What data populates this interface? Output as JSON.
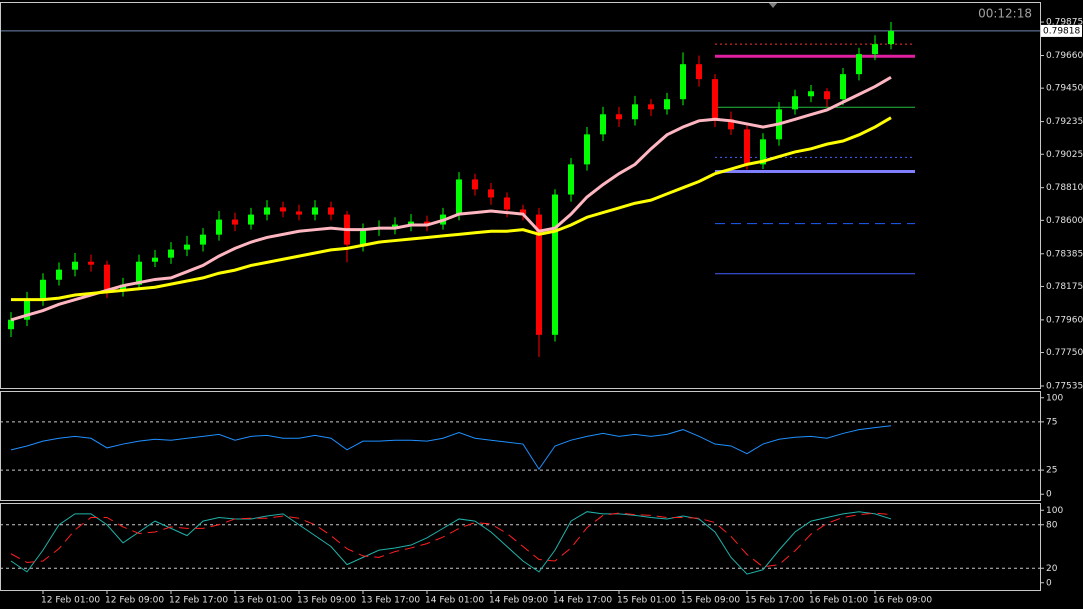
{
  "timer": "00:12:18",
  "chart_data": [
    {
      "type": "candlestick",
      "categories": [
        null,
        null,
        "12 Feb 01:00",
        null,
        null,
        null,
        "12 Feb 09:00",
        null,
        null,
        null,
        "12 Feb 17:00",
        null,
        null,
        null,
        "13 Feb 01:00",
        null,
        null,
        null,
        "13 Feb 09:00",
        null,
        null,
        null,
        "13 Feb 17:00",
        null,
        null,
        null,
        "14 Feb 01:00",
        null,
        null,
        null,
        "14 Feb 09:00",
        null,
        null,
        null,
        "14 Feb 17:00",
        null,
        null,
        null,
        "15 Feb 01:00",
        null,
        null,
        null,
        "15 Feb 09:00",
        null,
        null,
        null,
        "15 Feb 17:00",
        null,
        null,
        null,
        "16 Feb 01:00",
        null,
        null,
        null,
        "16 Feb 09:00",
        null
      ],
      "open": [
        0.779,
        0.77961,
        0.7809,
        0.78218,
        0.78283,
        0.78334,
        0.78315,
        0.78154,
        0.78186,
        0.78334,
        0.7836,
        0.78412,
        0.78444,
        0.78508,
        0.78605,
        0.78573,
        0.78637,
        0.78683,
        0.78657,
        0.78637,
        0.78683,
        0.78637,
        0.78444,
        0.78541,
        0.78554,
        0.78573,
        0.78592,
        0.78573,
        0.78637,
        0.78863,
        0.78799,
        0.78747,
        0.7867,
        0.78637,
        0.77864,
        0.78766,
        0.7896,
        0.79153,
        0.79282,
        0.7925,
        0.79346,
        0.79314,
        0.79379,
        0.79604,
        0.79508,
        0.7925,
        0.79185,
        0.7896,
        0.79121,
        0.79314,
        0.79398,
        0.7943,
        0.79379,
        0.7954,
        0.79669,
        0.79733
      ],
      "high": [
        0.7801,
        0.7814,
        0.7826,
        0.7833,
        0.7839,
        0.7838,
        0.7834,
        0.7823,
        0.7838,
        0.7841,
        0.7846,
        0.785,
        0.7855,
        0.7866,
        0.7865,
        0.7868,
        0.7873,
        0.7872,
        0.787,
        0.7873,
        0.7872,
        0.7866,
        0.7858,
        0.786,
        0.7862,
        0.7864,
        0.7863,
        0.7868,
        0.7891,
        0.789,
        0.7884,
        0.7878,
        0.787,
        0.7868,
        0.788,
        0.79,
        0.792,
        0.7933,
        0.7933,
        0.794,
        0.7938,
        0.7942,
        0.7968,
        0.7966,
        0.7954,
        0.793,
        0.7923,
        0.7916,
        0.7936,
        0.7944,
        0.7947,
        0.7945,
        0.7958,
        0.7971,
        0.7979,
        0.79875
      ],
      "low": [
        0.7785,
        0.7792,
        0.7805,
        0.7818,
        0.7824,
        0.7827,
        0.781,
        0.7811,
        0.7815,
        0.783,
        0.7832,
        0.7837,
        0.784,
        0.7847,
        0.7853,
        0.7854,
        0.786,
        0.7862,
        0.786,
        0.786,
        0.786,
        0.7833,
        0.784,
        0.785,
        0.7851,
        0.7853,
        0.7853,
        0.7854,
        0.786,
        0.7876,
        0.787,
        0.7862,
        0.786,
        0.77722,
        0.7782,
        0.7872,
        0.7892,
        0.7911,
        0.792,
        0.7921,
        0.7927,
        0.7928,
        0.7934,
        0.7946,
        0.792,
        0.7915,
        0.78927,
        0.7893,
        0.7908,
        0.7928,
        0.7936,
        0.7933,
        0.7934,
        0.795,
        0.7963,
        0.797
      ],
      "close": [
        0.77961,
        0.7809,
        0.78218,
        0.78283,
        0.78334,
        0.78315,
        0.78154,
        0.78186,
        0.78334,
        0.7836,
        0.78412,
        0.78444,
        0.78508,
        0.78605,
        0.78573,
        0.78637,
        0.78683,
        0.78657,
        0.78637,
        0.78683,
        0.78637,
        0.78444,
        0.78541,
        0.78554,
        0.78573,
        0.78592,
        0.78573,
        0.78637,
        0.78863,
        0.78799,
        0.78747,
        0.7867,
        0.78637,
        0.77864,
        0.78766,
        0.7896,
        0.79153,
        0.79282,
        0.7925,
        0.79346,
        0.79314,
        0.79379,
        0.79604,
        0.79508,
        0.7925,
        0.79185,
        0.7896,
        0.79121,
        0.79314,
        0.79398,
        0.7943,
        0.79379,
        0.7954,
        0.79669,
        0.79733,
        0.79818
      ],
      "up_color": "#00ff00",
      "down_color": "#ff0000",
      "series": [
        {
          "color": "#ffb6c1",
          "values": [
            0.7796,
            0.7799,
            0.7802,
            0.7806,
            0.7809,
            0.7812,
            0.7815,
            0.7818,
            0.782,
            0.7822,
            0.7823,
            0.7827,
            0.7831,
            0.7837,
            0.7842,
            0.7846,
            0.7849,
            0.7851,
            0.7853,
            0.7854,
            0.7855,
            0.7854,
            0.7854,
            0.7855,
            0.7855,
            0.7857,
            0.7857,
            0.786,
            0.7864,
            0.7865,
            0.7866,
            0.7865,
            0.7864,
            0.7853,
            0.7855,
            0.7864,
            0.7875,
            0.7883,
            0.789,
            0.7896,
            0.7906,
            0.7915,
            0.792,
            0.7924,
            0.7925,
            0.7924,
            0.7922,
            0.792,
            0.7922,
            0.7925,
            0.7928,
            0.7931,
            0.7936,
            0.7941,
            0.7946,
            0.7952
          ]
        },
        {
          "color": "#ffff00",
          "values": [
            0.7809,
            0.7809,
            0.7809,
            0.781,
            0.7812,
            0.7813,
            0.7814,
            0.7815,
            0.7816,
            0.7817,
            0.7819,
            0.7821,
            0.7823,
            0.7826,
            0.7828,
            0.7831,
            0.7833,
            0.7835,
            0.7837,
            0.7839,
            0.7841,
            0.7842,
            0.7844,
            0.7846,
            0.7847,
            0.7848,
            0.7849,
            0.785,
            0.7851,
            0.7852,
            0.7853,
            0.7853,
            0.7854,
            0.7851,
            0.7853,
            0.7857,
            0.7862,
            0.7865,
            0.7868,
            0.7871,
            0.7873,
            0.7877,
            0.7881,
            0.7885,
            0.789,
            0.7893,
            0.7896,
            0.7898,
            0.7901,
            0.7904,
            0.7906,
            0.7909,
            0.7911,
            0.7915,
            0.792,
            0.7926
          ]
        }
      ],
      "levels": [
        {
          "value": 0.79733,
          "color": "#ff3030",
          "style": "dotted"
        },
        {
          "value": 0.79655,
          "color": "#e020a0",
          "style": "thick"
        },
        {
          "value": 0.79327,
          "color": "#20c040",
          "style": "solid"
        },
        {
          "value": 0.79005,
          "color": "#4060ff",
          "style": "dotted"
        },
        {
          "value": 0.78914,
          "color": "#8080ff",
          "style": "thick"
        },
        {
          "value": 0.78579,
          "color": "#2060ff",
          "style": "dashed"
        },
        {
          "value": 0.78257,
          "color": "#4060ff",
          "style": "solid"
        }
      ],
      "last_price": 0.79818,
      "ylim": [
        0.77522,
        0.80004
      ],
      "yticks": [
        0.79875,
        {
          "value": 0.7966,
          "label": "0.79660"
        },
        {
          "value": 0.7945,
          "label": "0.79450"
        },
        0.79235,
        0.79025,
        {
          "value": 0.7881,
          "label": "0.78810"
        },
        {
          "value": 0.786,
          "label": "0.78600"
        },
        0.78385,
        0.78175,
        {
          "value": 0.7796,
          "label": "0.77960"
        },
        {
          "value": 0.7775,
          "label": "0.77750"
        },
        0.77535
      ]
    },
    {
      "type": "line",
      "series": [
        {
          "color": "#1e90ff",
          "values": [
            46,
            50,
            55,
            58,
            60,
            58,
            48,
            52,
            55,
            57,
            56,
            58,
            60,
            62,
            56,
            60,
            61,
            58,
            58,
            61,
            58,
            46,
            55,
            55,
            56,
            56,
            55,
            58,
            64,
            58,
            56,
            54,
            52,
            26,
            50,
            56,
            60,
            63,
            60,
            62,
            60,
            62,
            67,
            60,
            52,
            50,
            42,
            52,
            57,
            59,
            60,
            58,
            63,
            67,
            69,
            71
          ]
        }
      ],
      "levels": [
        75,
        25
      ],
      "ylim": [
        -6,
        107
      ],
      "yticks": [
        100,
        75,
        25,
        0
      ]
    },
    {
      "type": "line",
      "series": [
        {
          "color": "#20b2aa",
          "style": "solid",
          "values": [
            30,
            15,
            45,
            80,
            95,
            95,
            80,
            55,
            70,
            85,
            75,
            65,
            85,
            90,
            88,
            88,
            92,
            95,
            80,
            65,
            50,
            25,
            35,
            45,
            48,
            52,
            62,
            75,
            88,
            85,
            70,
            50,
            30,
            15,
            45,
            85,
            98,
            95,
            95,
            93,
            90,
            88,
            92,
            88,
            70,
            35,
            12,
            18,
            45,
            70,
            85,
            90,
            95,
            98,
            95,
            88
          ]
        },
        {
          "color": "#ff2020",
          "style": "dashed",
          "values": [
            40,
            28,
            30,
            47,
            73,
            90,
            90,
            77,
            68,
            70,
            77,
            75,
            75,
            80,
            88,
            89,
            89,
            92,
            89,
            80,
            65,
            47,
            37,
            35,
            43,
            48,
            54,
            63,
            75,
            83,
            81,
            68,
            50,
            32,
            30,
            48,
            76,
            93,
            96,
            94,
            93,
            90,
            90,
            89,
            83,
            64,
            39,
            22,
            25,
            44,
            67,
            82,
            90,
            94,
            96,
            94
          ]
        }
      ],
      "levels": [
        80,
        20
      ],
      "ylim": [
        -10,
        110
      ],
      "yticks": [
        100,
        80,
        20,
        0
      ]
    }
  ]
}
